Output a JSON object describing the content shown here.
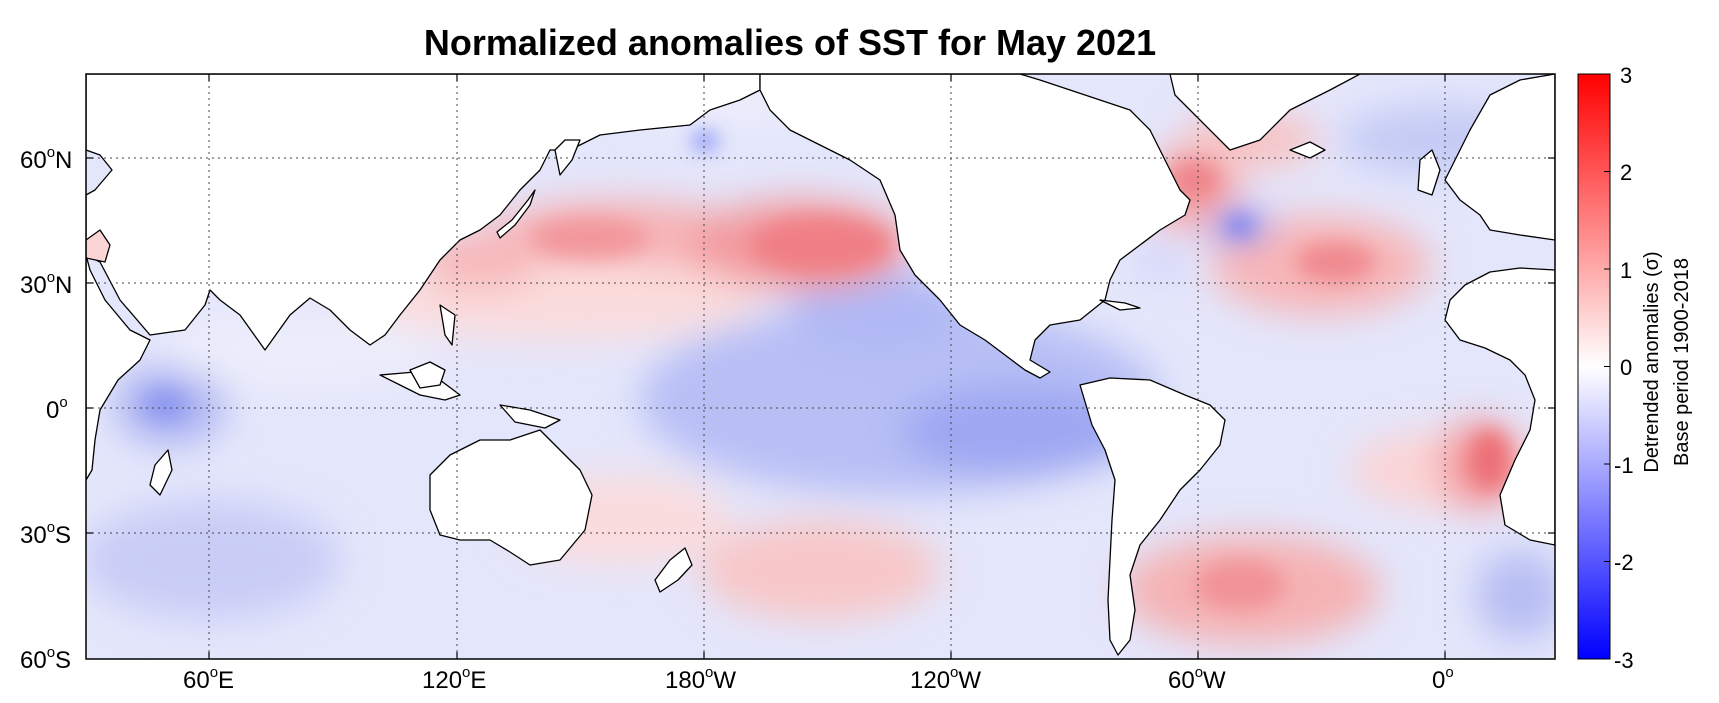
{
  "title": "Normalized anomalies of SST for May 2021",
  "map": {
    "projection": "equirectangular, Pacific-centred",
    "lon_range": [
      30,
      390
    ],
    "lat_range": [
      -60,
      80
    ],
    "gridlines": "dotted",
    "lat_ticks": [
      {
        "deg": "60",
        "hemi": "N"
      },
      {
        "deg": "30",
        "hemi": "N"
      },
      {
        "deg": "0",
        "hemi": ""
      },
      {
        "deg": "30",
        "hemi": "S"
      },
      {
        "deg": "60",
        "hemi": "S"
      }
    ],
    "lon_ticks": [
      {
        "deg": "60",
        "hemi": "E"
      },
      {
        "deg": "120",
        "hemi": "E"
      },
      {
        "deg": "180",
        "hemi": "W"
      },
      {
        "deg": "120",
        "hemi": "W"
      },
      {
        "deg": "60",
        "hemi": "W"
      },
      {
        "deg": "0",
        "hemi": ""
      }
    ],
    "degree_symbol": "o"
  },
  "colorbar": {
    "label_line1": "Detrended anomalies (σ)",
    "label_line2": "Base period 1900-2018",
    "ticks": [
      "3",
      "2",
      "1",
      "0",
      "-1",
      "-2",
      "-3"
    ],
    "range": [
      -3,
      3
    ],
    "color_low": "#0000ff",
    "color_mid": "#ffffff",
    "color_high": "#ff0000"
  },
  "colors": {
    "land": "#ffffff",
    "coastline": "#000000",
    "warm": "#e8323c",
    "cool": "#4a5bff"
  }
}
